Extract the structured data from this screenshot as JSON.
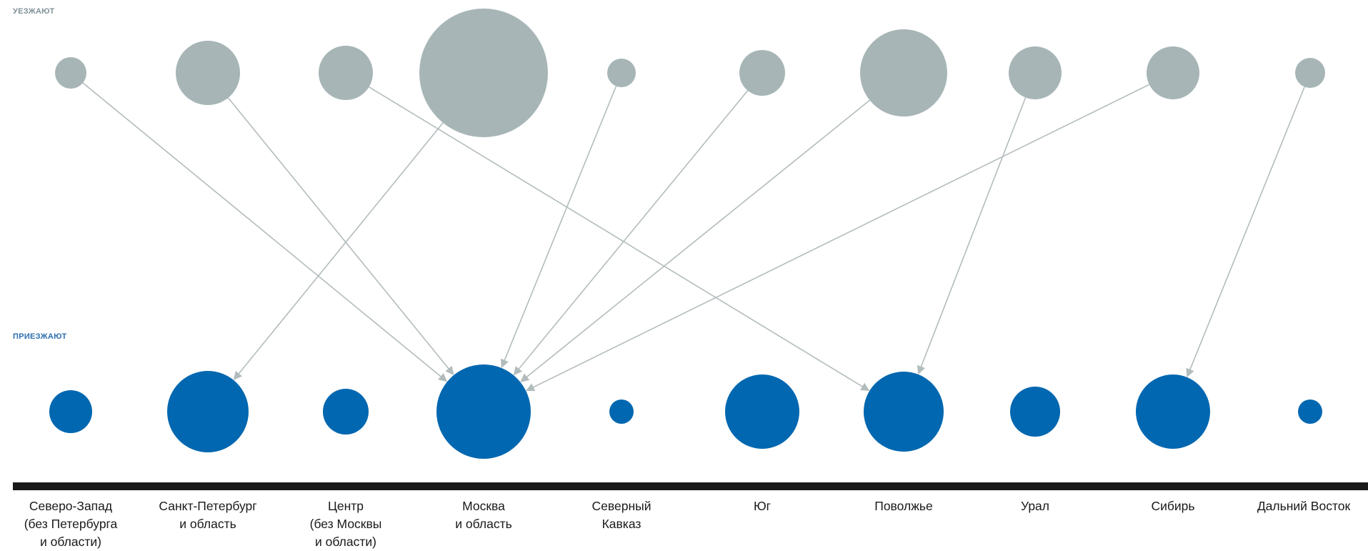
{
  "labels": {
    "top_section": "УЕЗЖАЮТ",
    "bottom_section": "ПРИЕЗЖАЮТ"
  },
  "colors": {
    "leaving": "#a7b5b6",
    "arriving": "#0067b0",
    "arrow": "#b3bcbd",
    "baseline": "#1a1a1a"
  },
  "regions": [
    {
      "id": "northwest",
      "label": "Северо-Запад\n(без Петербурга\nи области)"
    },
    {
      "id": "spb",
      "label": "Санкт-Петербург\nи область"
    },
    {
      "id": "center",
      "label": "Центр\n(без Москвы\nи области)"
    },
    {
      "id": "moscow",
      "label": "Москва\nи область"
    },
    {
      "id": "caucasus",
      "label": "Северный\nКавказ"
    },
    {
      "id": "south",
      "label": "Юг"
    },
    {
      "id": "volga",
      "label": "Поволжье"
    },
    {
      "id": "ural",
      "label": "Урал"
    },
    {
      "id": "siberia",
      "label": "Сибирь"
    },
    {
      "id": "fareast",
      "label": "Дальний Восток"
    }
  ],
  "flows": [
    {
      "from": "northwest",
      "to": "moscow"
    },
    {
      "from": "spb",
      "to": "moscow"
    },
    {
      "from": "center",
      "to": "volga"
    },
    {
      "from": "moscow",
      "to": "spb"
    },
    {
      "from": "caucasus",
      "to": "moscow"
    },
    {
      "from": "south",
      "to": "moscow"
    },
    {
      "from": "volga",
      "to": "moscow"
    },
    {
      "from": "ural",
      "to": "volga"
    },
    {
      "from": "siberia",
      "to": "moscow"
    },
    {
      "from": "fareast",
      "to": "siberia"
    }
  ]
}
